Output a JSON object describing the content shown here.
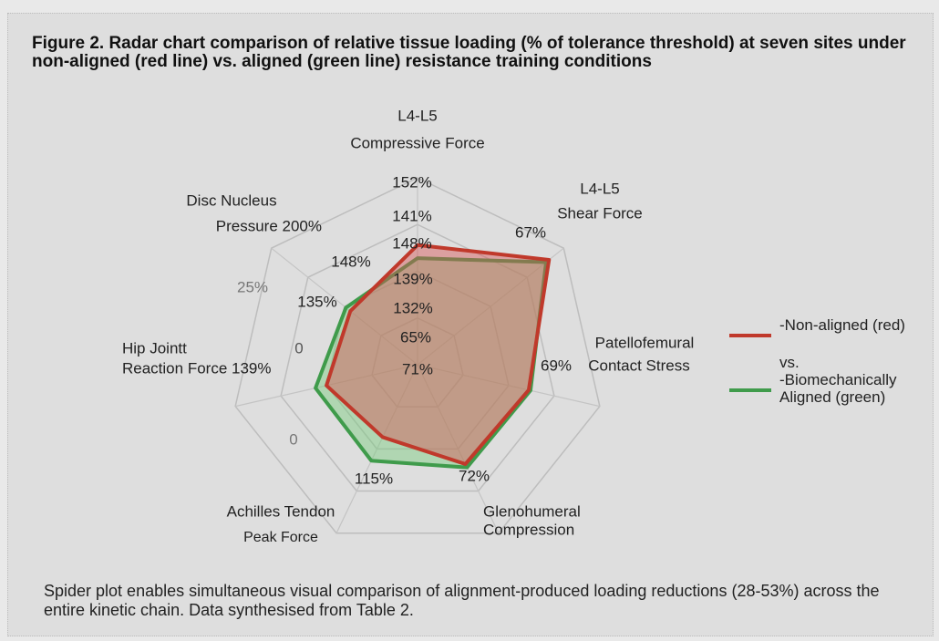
{
  "chart_data": {
    "type": "radar",
    "title": "Figure 2. Radar chart comparison of relative tissue loading (% of tolerance threshold) at seven sites under non-aligned (red line) vs. aligned (green line) resistance training conditions",
    "categories": [
      [
        "L4-L5",
        "Compressive Force"
      ],
      [
        "L4-L5",
        "Shear Force"
      ],
      [
        "Patellofemural",
        "Contact Stress"
      ],
      [
        "Glenohumeral",
        "Compression"
      ],
      [
        "Achilles Tendon",
        "Peak Force"
      ],
      [
        "Hip Jointt",
        "Reaction Force 139%"
      ],
      [
        "Disc Nucleus",
        "Pressure 200%"
      ]
    ],
    "rlim": [
      0,
      100
    ],
    "rticks": [
      25,
      50,
      75,
      100
    ],
    "grid": true,
    "series": [
      {
        "name": "-Biomechanically Aligned (green)",
        "color": "#3f9b4b",
        "fill": "rgba(120,205,125,0.45)",
        "values": [
          57,
          88,
          62,
          61,
          57,
          56,
          49
        ]
      },
      {
        "name": "-Non-aligned (red)",
        "color": "#c0392b",
        "fill": "rgba(215,85,85,0.45)",
        "values": [
          64,
          90,
          61,
          59,
          43,
          50,
          46
        ]
      }
    ],
    "legend_separator": "vs.",
    "annotations": [
      "152%",
      "141%",
      "148%",
      "139%",
      "132%",
      "65%",
      "71%",
      "148%",
      "135%",
      "25%",
      "0",
      "0",
      "115%",
      "72%",
      "67%",
      "69%"
    ],
    "caption": "Spider plot enables simultaneous visual comparison of alignment-produced loading reductions (28-53%) across the entire kinetic chain. Data synthesised from Table 2."
  }
}
